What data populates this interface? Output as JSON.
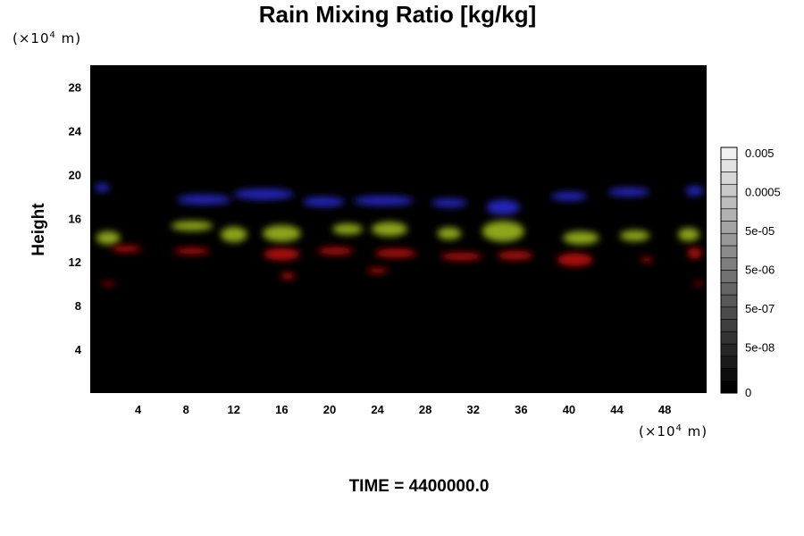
{
  "chart_data": {
    "type": "heatmap",
    "title": "Rain Mixing Ratio [kg/kg]",
    "ylabel": "Height",
    "xlabel": "",
    "y_unit_prefix": "(×10",
    "y_unit_exp": "4",
    "y_unit_suffix": " m)",
    "x_unit_prefix": "(×10",
    "x_unit_exp": "4",
    "x_unit_suffix": " m)",
    "xlim": [
      0,
      51.5
    ],
    "ylim": [
      0,
      30
    ],
    "xticks": [
      {
        "value": 4,
        "label": "4"
      },
      {
        "value": 8,
        "label": "8"
      },
      {
        "value": 12,
        "label": "12"
      },
      {
        "value": 16,
        "label": "16"
      },
      {
        "value": 20,
        "label": "20"
      },
      {
        "value": 24,
        "label": "24"
      },
      {
        "value": 28,
        "label": "28"
      },
      {
        "value": 32,
        "label": "32"
      },
      {
        "value": 36,
        "label": "36"
      },
      {
        "value": 40,
        "label": "40"
      },
      {
        "value": 44,
        "label": "44"
      },
      {
        "value": 48,
        "label": "48"
      }
    ],
    "yticks": [
      {
        "value": 4,
        "label": "4"
      },
      {
        "value": 8,
        "label": "8"
      },
      {
        "value": 12,
        "label": "12"
      },
      {
        "value": 16,
        "label": "16"
      },
      {
        "value": 20,
        "label": "20"
      },
      {
        "value": 24,
        "label": "24"
      },
      {
        "value": 28,
        "label": "28"
      }
    ],
    "colorbar": {
      "levels": 20,
      "labels": [
        "0",
        "5e-08",
        "5e-07",
        "5e-06",
        "5e-05",
        "0.0005",
        "0.005"
      ],
      "low_color": "#000000",
      "high_color": "#f0f0f0"
    },
    "background_color": "#000000",
    "layers": [
      {
        "color": "#2a2cd6",
        "blobs": [
          {
            "x": 1.0,
            "y": 18.8,
            "w": 1.2,
            "h": 0.8
          },
          {
            "x": 9.5,
            "y": 17.7,
            "w": 4.5,
            "h": 0.9
          },
          {
            "x": 14.5,
            "y": 18.2,
            "w": 5.0,
            "h": 1.0
          },
          {
            "x": 19.5,
            "y": 17.5,
            "w": 3.5,
            "h": 0.9
          },
          {
            "x": 24.5,
            "y": 17.6,
            "w": 5.0,
            "h": 0.9
          },
          {
            "x": 30.0,
            "y": 17.4,
            "w": 3.0,
            "h": 0.8
          },
          {
            "x": 34.5,
            "y": 17.0,
            "w": 2.8,
            "h": 1.4
          },
          {
            "x": 40.0,
            "y": 18.0,
            "w": 3.0,
            "h": 0.8
          },
          {
            "x": 45.0,
            "y": 18.4,
            "w": 3.5,
            "h": 0.8
          },
          {
            "x": 50.5,
            "y": 18.5,
            "w": 1.5,
            "h": 0.9
          }
        ]
      },
      {
        "color": "#a6c21c",
        "blobs": [
          {
            "x": 1.5,
            "y": 14.2,
            "w": 2.0,
            "h": 1.2
          },
          {
            "x": 8.5,
            "y": 15.3,
            "w": 3.5,
            "h": 0.9
          },
          {
            "x": 12.0,
            "y": 14.5,
            "w": 2.2,
            "h": 1.4
          },
          {
            "x": 16.0,
            "y": 14.6,
            "w": 3.2,
            "h": 1.5
          },
          {
            "x": 21.5,
            "y": 15.0,
            "w": 2.5,
            "h": 1.0
          },
          {
            "x": 25.0,
            "y": 15.0,
            "w": 3.0,
            "h": 1.3
          },
          {
            "x": 30.0,
            "y": 14.6,
            "w": 2.0,
            "h": 1.1
          },
          {
            "x": 34.5,
            "y": 14.8,
            "w": 3.5,
            "h": 1.9
          },
          {
            "x": 41.0,
            "y": 14.2,
            "w": 3.0,
            "h": 1.2
          },
          {
            "x": 45.5,
            "y": 14.4,
            "w": 2.5,
            "h": 1.0
          },
          {
            "x": 50.0,
            "y": 14.5,
            "w": 1.8,
            "h": 1.2
          }
        ]
      },
      {
        "color": "#cc1212",
        "blobs": [
          {
            "x": 1.5,
            "y": 10.0,
            "w": 1.2,
            "h": 0.35
          },
          {
            "x": 3.0,
            "y": 13.2,
            "w": 2.5,
            "h": 0.6
          },
          {
            "x": 8.5,
            "y": 13.0,
            "w": 3.0,
            "h": 0.6
          },
          {
            "x": 16.0,
            "y": 12.7,
            "w": 3.0,
            "h": 1.1
          },
          {
            "x": 16.5,
            "y": 10.7,
            "w": 1.2,
            "h": 0.6
          },
          {
            "x": 20.5,
            "y": 13.0,
            "w": 3.0,
            "h": 0.7
          },
          {
            "x": 24.0,
            "y": 11.2,
            "w": 1.8,
            "h": 0.5
          },
          {
            "x": 25.5,
            "y": 12.8,
            "w": 3.5,
            "h": 0.8
          },
          {
            "x": 31.0,
            "y": 12.5,
            "w": 3.5,
            "h": 0.7
          },
          {
            "x": 35.5,
            "y": 12.6,
            "w": 3.0,
            "h": 0.8
          },
          {
            "x": 40.5,
            "y": 12.2,
            "w": 3.0,
            "h": 1.2
          },
          {
            "x": 46.5,
            "y": 12.2,
            "w": 1.0,
            "h": 0.5
          },
          {
            "x": 50.5,
            "y": 12.8,
            "w": 1.2,
            "h": 1.0
          },
          {
            "x": 50.8,
            "y": 10.0,
            "w": 0.8,
            "h": 0.35
          }
        ]
      }
    ],
    "footer": "TIME = 4400000.0"
  }
}
